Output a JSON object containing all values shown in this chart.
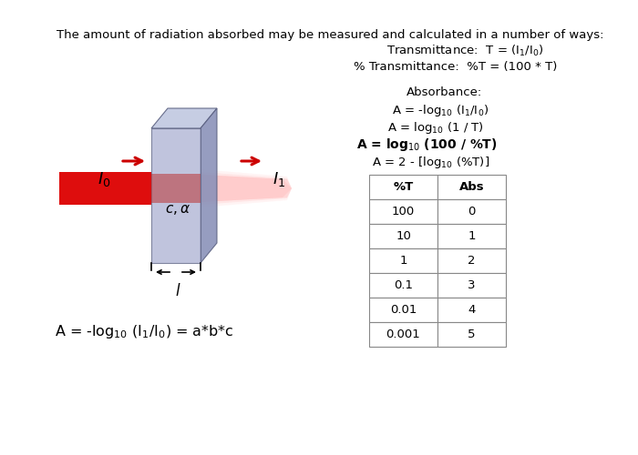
{
  "title_text": "The amount of radiation absorbed may be measured and calculated in a number of ways:",
  "table_headers": [
    "%T",
    "Abs"
  ],
  "table_data": [
    [
      "100",
      "0"
    ],
    [
      "10",
      "1"
    ],
    [
      "1",
      "2"
    ],
    [
      "0.1",
      "3"
    ],
    [
      "0.01",
      "4"
    ],
    [
      "0.001",
      "5"
    ]
  ],
  "cuvette_front": "#a8aed0",
  "cuvette_right": "#8890b8",
  "cuvette_top": "#c0c8e0",
  "cuvette_edge": "#5a6080",
  "beam_left_color": "#dd0000",
  "beam_right_color": "#ffb8b8",
  "arrow_color": "#cc0000",
  "text_color": "#000000",
  "bg_color": "#ffffff",
  "title_fontsize": 9.5,
  "body_fontsize": 9.5,
  "eq_fontsize": 9.5,
  "table_fontsize": 9.5,
  "beer_fontsize": 11.5
}
